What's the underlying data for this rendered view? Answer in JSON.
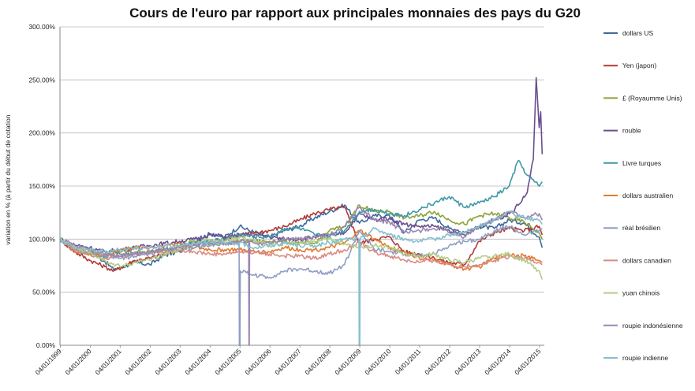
{
  "chart_data": {
    "type": "line",
    "title": "Cours de l'euro par rapport aux principales monnaies des pays du G20",
    "xlabel": "",
    "ylabel": "variation en % (à partir du début de cotation",
    "ylim": [
      0,
      300
    ],
    "y_ticks": [
      "0.00%",
      "50.00%",
      "100.00%",
      "150.00%",
      "200.00%",
      "250.00%",
      "300.00%"
    ],
    "x_ticks": [
      "04/01/1999",
      "04/01/2000",
      "04/01/2001",
      "04/01/2002",
      "04/01/2003",
      "04/01/2004",
      "04/01/2005",
      "04/01/2006",
      "04/01/2007",
      "04/01/2008",
      "04/01/2009",
      "04/01/2010",
      "04/01/2011",
      "04/01/2012",
      "04/01/2013",
      "04/01/2014",
      "04/01/2015"
    ],
    "grid": "horizontal",
    "legend": "right",
    "series": [
      {
        "name": "dollars US",
        "color": "#3e6a9c",
        "x": [
          1999.0,
          1999.5,
          2000.0,
          2000.5,
          2000.8,
          2001.5,
          2002.0,
          2002.5,
          2003.0,
          2003.5,
          2004.0,
          2004.5,
          2005.0,
          2005.5,
          2006.0,
          2006.5,
          2007.0,
          2007.5,
          2008.0,
          2008.5,
          2009.0,
          2009.5,
          2010.0,
          2010.5,
          2011.0,
          2011.5,
          2012.0,
          2012.5,
          2013.0,
          2013.5,
          2014.0,
          2014.5,
          2015.0,
          2015.1
        ],
        "y": [
          100,
          92,
          88,
          79,
          71,
          78,
          76,
          85,
          88,
          98,
          105,
          102,
          112,
          106,
          102,
          108,
          112,
          120,
          126,
          132,
          115,
          122,
          122,
          106,
          118,
          120,
          110,
          104,
          112,
          110,
          118,
          115,
          102,
          92
        ]
      },
      {
        "name": "Yen (japon)",
        "color": "#b03a36",
        "x": [
          1999.0,
          1999.5,
          2000.0,
          2000.5,
          2000.8,
          2001.5,
          2002.0,
          2002.5,
          2003.0,
          2003.5,
          2004.0,
          2004.5,
          2005.0,
          2005.5,
          2006.0,
          2006.5,
          2007.0,
          2007.5,
          2008.0,
          2008.5,
          2009.0,
          2009.5,
          2010.0,
          2010.5,
          2011.0,
          2011.5,
          2012.0,
          2012.5,
          2013.0,
          2013.5,
          2014.0,
          2014.5,
          2015.0,
          2015.1
        ],
        "y": [
          100,
          88,
          80,
          74,
          70,
          80,
          82,
          86,
          90,
          96,
          98,
          100,
          104,
          106,
          108,
          112,
          118,
          124,
          128,
          130,
          96,
          100,
          102,
          88,
          86,
          82,
          78,
          76,
          98,
          106,
          110,
          108,
          112,
          104
        ]
      },
      {
        "name": "£ (Royaumme Unis)",
        "color": "#8aa33a",
        "x": [
          1999.0,
          1999.5,
          2000.0,
          2000.5,
          2001.0,
          2001.5,
          2002.0,
          2002.5,
          2003.0,
          2003.5,
          2004.0,
          2004.5,
          2005.0,
          2005.5,
          2006.0,
          2006.5,
          2007.0,
          2007.5,
          2008.0,
          2008.5,
          2009.0,
          2009.5,
          2010.0,
          2010.5,
          2011.0,
          2011.5,
          2012.0,
          2012.5,
          2013.0,
          2013.5,
          2014.0,
          2014.5,
          2015.0,
          2015.1
        ],
        "y": [
          100,
          92,
          88,
          86,
          88,
          88,
          88,
          90,
          94,
          98,
          96,
          96,
          98,
          98,
          98,
          98,
          96,
          96,
          108,
          112,
          132,
          126,
          126,
          120,
          122,
          126,
          118,
          114,
          122,
          124,
          120,
          116,
          106,
          100
        ]
      },
      {
        "name": "rouble",
        "color": "#6b4e8f",
        "x": [
          1999.0,
          1999.3,
          1999.6,
          2000.0,
          2000.5,
          2001.0,
          2001.5,
          2002.0,
          2002.5,
          2003.0,
          2003.5,
          2004.0,
          2004.5,
          2005.0,
          2005.5,
          2006.0,
          2006.5,
          2007.0,
          2007.5,
          2008.0,
          2008.5,
          2009.0,
          2009.5,
          2010.0,
          2010.5,
          2011.0,
          2011.5,
          2012.0,
          2012.5,
          2013.0,
          2013.5,
          2014.0,
          2014.3,
          2014.6,
          2014.8,
          2014.9,
          2015.0,
          2015.05,
          2015.1
        ],
        "y": [
          100,
          96,
          94,
          92,
          88,
          90,
          92,
          94,
          96,
          98,
          100,
          104,
          102,
          104,
          104,
          102,
          100,
          100,
          102,
          104,
          106,
          124,
          118,
          120,
          114,
          112,
          112,
          108,
          106,
          112,
          118,
          124,
          132,
          144,
          175,
          252,
          205,
          220,
          180
        ]
      },
      {
        "name": "Livre turques",
        "color": "#3f98a8",
        "x": [
          1999.0,
          1999.5,
          2000.0,
          2000.5,
          2001.0,
          2001.5,
          2002.0,
          2002.5,
          2003.0,
          2003.5,
          2004.0,
          2004.5,
          2005.0,
          2005.5,
          2006.0,
          2006.5,
          2007.0,
          2007.5,
          2008.0,
          2008.5,
          2009.0,
          2009.5,
          2010.0,
          2010.5,
          2011.0,
          2011.5,
          2012.0,
          2012.5,
          2013.0,
          2013.5,
          2014.0,
          2014.3,
          2014.6,
          2015.0,
          2015.1
        ],
        "y": [
          100,
          90,
          86,
          84,
          86,
          86,
          88,
          90,
          92,
          96,
          98,
          100,
          104,
          102,
          102,
          110,
          110,
          104,
          102,
          108,
          126,
          128,
          124,
          122,
          128,
          134,
          140,
          130,
          134,
          140,
          150,
          174,
          160,
          150,
          154
        ]
      },
      {
        "name": "dollars australien",
        "color": "#e07a30",
        "x": [
          1999.0,
          1999.5,
          2000.0,
          2000.5,
          2001.0,
          2001.5,
          2002.0,
          2002.5,
          2003.0,
          2003.5,
          2004.0,
          2004.5,
          2005.0,
          2005.5,
          2006.0,
          2006.5,
          2007.0,
          2007.5,
          2008.0,
          2008.5,
          2009.0,
          2009.5,
          2010.0,
          2010.5,
          2011.0,
          2011.5,
          2012.0,
          2012.5,
          2013.0,
          2013.5,
          2014.0,
          2014.5,
          2015.0,
          2015.1
        ],
        "y": [
          100,
          88,
          86,
          84,
          90,
          92,
          92,
          94,
          96,
          92,
          90,
          90,
          90,
          88,
          88,
          92,
          90,
          90,
          92,
          96,
          108,
          100,
          92,
          88,
          82,
          80,
          76,
          72,
          74,
          82,
          86,
          84,
          80,
          78
        ]
      },
      {
        "name": "réal brésilien",
        "color": "#8e9ec4",
        "x": [
          1999.0,
          1999.5,
          2000.0,
          2000.5,
          2001.0,
          2001.5,
          2002.0,
          2002.5,
          2003.0,
          2003.5,
          2004.0,
          2004.5,
          2004.98,
          2004.99,
          2005.01,
          2005.02,
          2005.5,
          2006.0,
          2006.5,
          2007.0,
          2007.5,
          2008.0,
          2008.5,
          2009.0,
          2009.5,
          2010.0,
          2010.5,
          2011.0,
          2011.5,
          2012.0,
          2012.5,
          2013.0,
          2013.5,
          2014.0,
          2014.5,
          2015.0,
          2015.1
        ],
        "y": [
          100,
          90,
          88,
          84,
          82,
          84,
          86,
          88,
          90,
          92,
          94,
          96,
          96,
          0,
          0,
          70,
          66,
          64,
          70,
          72,
          70,
          68,
          76,
          108,
          90,
          88,
          86,
          84,
          86,
          94,
          98,
          100,
          108,
          112,
          104,
          108,
          110
        ]
      },
      {
        "name": "dollars canadien",
        "color": "#d98a84",
        "x": [
          1999.0,
          1999.5,
          2000.0,
          2000.5,
          2001.0,
          2001.5,
          2002.0,
          2002.5,
          2003.0,
          2003.5,
          2004.0,
          2004.5,
          2005.0,
          2005.5,
          2006.0,
          2006.5,
          2007.0,
          2007.5,
          2008.0,
          2008.5,
          2009.0,
          2009.5,
          2010.0,
          2010.5,
          2011.0,
          2011.5,
          2012.0,
          2012.5,
          2013.0,
          2013.5,
          2014.0,
          2014.5,
          2015.0,
          2015.1
        ],
        "y": [
          100,
          90,
          86,
          82,
          84,
          86,
          88,
          88,
          90,
          88,
          86,
          86,
          88,
          88,
          86,
          84,
          84,
          82,
          86,
          90,
          96,
          88,
          84,
          80,
          78,
          80,
          76,
          74,
          76,
          80,
          84,
          82,
          78,
          76
        ]
      },
      {
        "name": "yuan chinois",
        "color": "#b3cd85",
        "x": [
          1999.0,
          1999.5,
          2000.0,
          2000.5,
          2001.0,
          2001.5,
          2002.0,
          2002.5,
          2003.0,
          2003.5,
          2004.0,
          2004.5,
          2005.0,
          2005.5,
          2006.0,
          2006.5,
          2007.0,
          2007.5,
          2008.0,
          2008.5,
          2009.0,
          2009.5,
          2010.0,
          2010.5,
          2011.0,
          2011.5,
          2012.0,
          2012.5,
          2013.0,
          2013.5,
          2014.0,
          2014.5,
          2015.0,
          2015.1
        ],
        "y": [
          100,
          92,
          88,
          80,
          74,
          78,
          80,
          86,
          90,
          96,
          100,
          98,
          102,
          98,
          94,
          96,
          96,
          98,
          100,
          96,
          92,
          94,
          92,
          86,
          84,
          86,
          80,
          78,
          82,
          84,
          86,
          80,
          70,
          62
        ]
      },
      {
        "name": "roupie indonésienne",
        "color": "#9b86b1",
        "x": [
          1999.0,
          1999.5,
          2000.0,
          2000.5,
          2001.0,
          2001.5,
          2002.0,
          2002.5,
          2003.0,
          2003.5,
          2004.0,
          2004.5,
          2005.0,
          2005.3,
          2005.31,
          2005.32,
          2005.33,
          2005.5,
          2006.0,
          2006.5,
          2007.0,
          2007.5,
          2008.0,
          2008.5,
          2009.0,
          2009.5,
          2010.0,
          2010.5,
          2011.0,
          2011.5,
          2012.0,
          2012.5,
          2013.0,
          2013.5,
          2014.0,
          2014.5,
          2015.0,
          2015.1
        ],
        "y": [
          100,
          94,
          90,
          86,
          84,
          86,
          88,
          90,
          92,
          94,
          96,
          96,
          98,
          98,
          0,
          0,
          98,
          96,
          96,
          100,
          100,
          102,
          104,
          112,
          130,
          118,
          116,
          106,
          108,
          110,
          106,
          102,
          112,
          118,
          126,
          120,
          124,
          118
        ]
      },
      {
        "name": "roupie indienne",
        "color": "#85bfcf",
        "x": [
          1999.0,
          1999.5,
          2000.0,
          2000.5,
          2001.0,
          2001.5,
          2002.0,
          2002.5,
          2003.0,
          2003.5,
          2004.0,
          2004.5,
          2005.0,
          2005.5,
          2006.0,
          2006.5,
          2007.0,
          2007.5,
          2008.0,
          2008.5,
          2008.98,
          2008.99,
          2009.01,
          2009.02,
          2009.5,
          2010.0,
          2010.5,
          2011.0,
          2011.5,
          2012.0,
          2012.5,
          2013.0,
          2013.5,
          2014.0,
          2014.5,
          2015.0,
          2015.1
        ],
        "y": [
          100,
          92,
          90,
          88,
          90,
          92,
          92,
          94,
          94,
          96,
          98,
          96,
          96,
          92,
          94,
          96,
          94,
          94,
          96,
          100,
          100,
          0,
          0,
          100,
          110,
          104,
          100,
          98,
          100,
          104,
          106,
          112,
          118,
          126,
          120,
          118,
          114
        ]
      }
    ]
  }
}
